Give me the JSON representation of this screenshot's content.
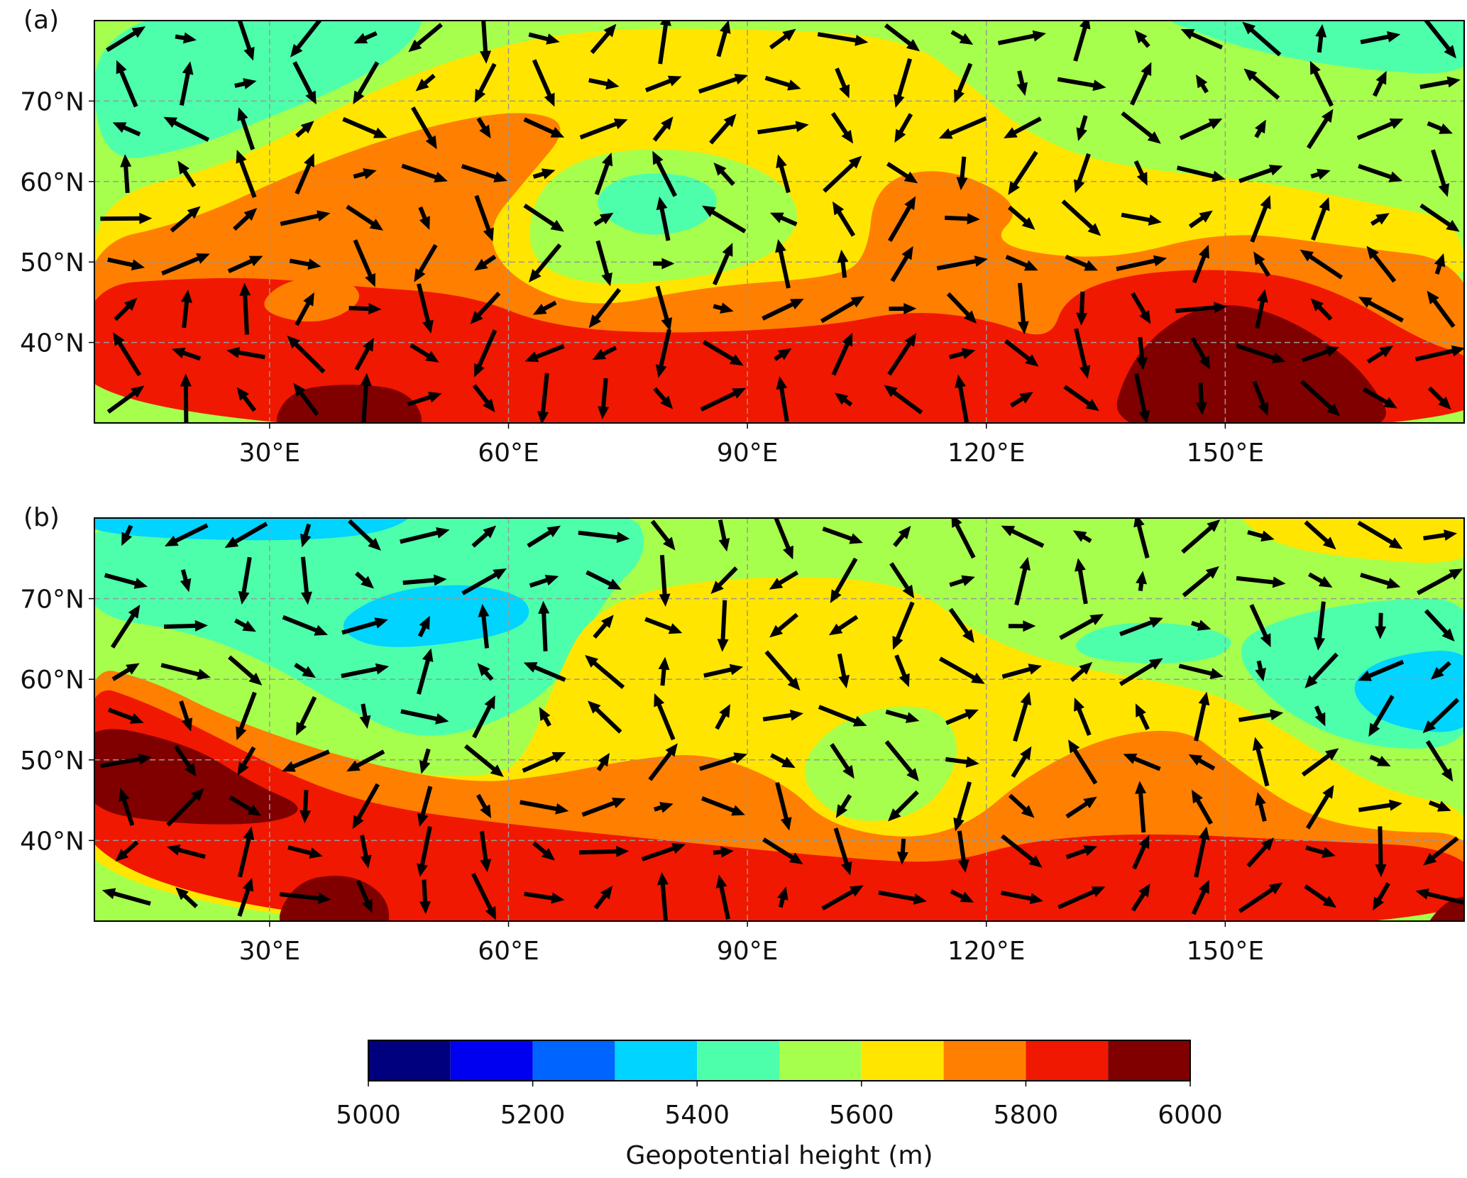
{
  "panels": [
    {
      "label": "(a)"
    },
    {
      "label": "(b)"
    }
  ],
  "map": {
    "lon_range": [
      8,
      180
    ],
    "lat_range": [
      30,
      80
    ],
    "xticks": [
      {
        "value": 30,
        "label": "30°E"
      },
      {
        "value": 60,
        "label": "60°E"
      },
      {
        "value": 90,
        "label": "90°E"
      },
      {
        "value": 120,
        "label": "120°E"
      },
      {
        "value": 150,
        "label": "150°E"
      }
    ],
    "yticks": [
      {
        "value": 40,
        "label": "40°N"
      },
      {
        "value": 50,
        "label": "50°N"
      },
      {
        "value": 60,
        "label": "60°N"
      },
      {
        "value": 70,
        "label": "70°N"
      }
    ],
    "grid": true
  },
  "colorbar": {
    "label": "Geopotential height (m)",
    "levels": [
      5000,
      5100,
      5200,
      5300,
      5400,
      5500,
      5600,
      5700,
      5800,
      5900,
      6000
    ],
    "colors": [
      "#00007f",
      "#0000f1",
      "#0064ff",
      "#00d4ff",
      "#4dffaa",
      "#a6ff4d",
      "#ffe500",
      "#ff7f00",
      "#f01800",
      "#800000"
    ],
    "ticks": [
      5000,
      5200,
      5400,
      5600,
      5800,
      6000
    ]
  }
}
